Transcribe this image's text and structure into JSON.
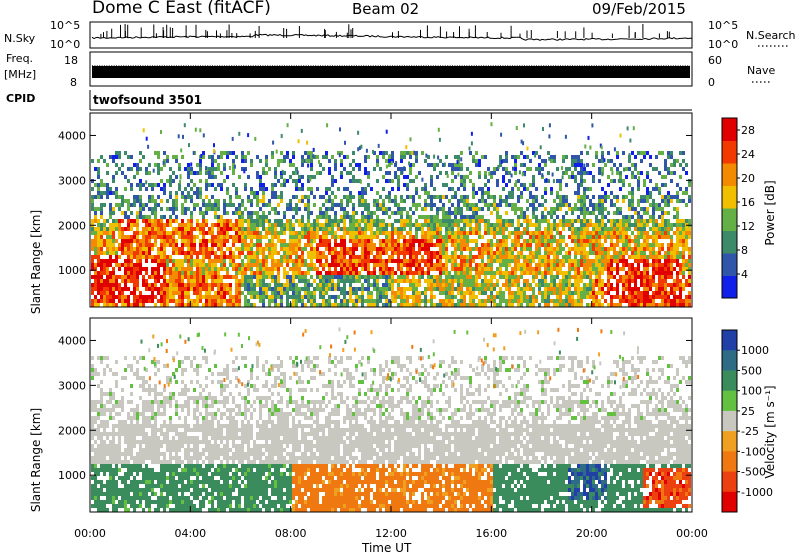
{
  "header": {
    "radar": "Dome C East (fitACF)",
    "beam": "Beam 02",
    "date": "09/Feb/2015"
  },
  "left_labels": {
    "nsky": "N.Sky",
    "freq": "Freq.",
    "freq_unit": "[MHz]",
    "cpid": "CPID"
  },
  "right_labels": {
    "nsearch": "N.Search",
    "nave": "Nave"
  },
  "cpid_value": "twofsound 3501",
  "strip_ticks": {
    "noise_left": [
      "10^5",
      "10^0"
    ],
    "noise_right": [
      "10^5",
      "10^0"
    ],
    "freq_left": [
      "18",
      "8"
    ],
    "nave_right": [
      "60",
      "0"
    ]
  },
  "colors": {
    "power_scale": [
      "#1020e8",
      "#2f56a8",
      "#3d8a6a",
      "#64b046",
      "#f0c000",
      "#f48a00",
      "#f23a00",
      "#e00000"
    ],
    "velocity_scale": [
      "#2040a8",
      "#2e6c86",
      "#3a8c5c",
      "#64c040",
      "#c8c8c0",
      "#f0a020",
      "#f07810",
      "#ec4010",
      "#e00000"
    ]
  },
  "chart_data": [
    {
      "type": "heatmap",
      "title": "Power",
      "xlabel": "",
      "ylabel": "Slant Range [km]",
      "x_ticks": [
        "00:00",
        "04:00",
        "08:00",
        "12:00",
        "16:00",
        "20:00",
        "00:00"
      ],
      "y_ticks": [
        1000,
        2000,
        3000,
        4000
      ],
      "ylim": [
        180,
        4500
      ],
      "colorbar": {
        "label": "Power [dB]",
        "ticks": [
          4,
          8,
          12,
          16,
          20,
          24,
          28
        ],
        "range": [
          0,
          30
        ]
      },
      "bands": [
        {
          "h0": 0,
          "h1": 24,
          "r0": 900,
          "r1": 1900,
          "v": 18
        },
        {
          "h0": 0,
          "h1": 24,
          "r0": 1900,
          "r1": 2200,
          "v": 14
        },
        {
          "h0": 0,
          "h1": 24,
          "r0": 2200,
          "r1": 2700,
          "v": 10
        },
        {
          "h0": 0,
          "h1": 24,
          "r0": 2700,
          "r1": 3700,
          "v": 8
        },
        {
          "h0": 0,
          "h1": 6,
          "r0": 200,
          "r1": 900,
          "v": 22
        },
        {
          "h0": 6,
          "h1": 12,
          "r0": 200,
          "r1": 900,
          "v": 12
        },
        {
          "h0": 12,
          "h1": 20,
          "r0": 200,
          "r1": 900,
          "v": 16
        },
        {
          "h0": 20,
          "h1": 24,
          "r0": 200,
          "r1": 900,
          "v": 22
        },
        {
          "h0": 0,
          "h1": 3,
          "r0": 300,
          "r1": 1400,
          "v": 27
        },
        {
          "h0": 20.5,
          "h1": 23.5,
          "r0": 300,
          "r1": 1300,
          "v": 26
        },
        {
          "h0": 9,
          "h1": 14,
          "r0": 900,
          "r1": 1700,
          "v": 24
        },
        {
          "h0": 1,
          "h1": 6,
          "r0": 1300,
          "r1": 2200,
          "v": 22
        }
      ]
    },
    {
      "type": "heatmap",
      "title": "Velocity",
      "xlabel": "Time UT",
      "ylabel": "Slant Range [km]",
      "x_ticks": [
        "00:00",
        "04:00",
        "08:00",
        "12:00",
        "16:00",
        "20:00",
        "00:00"
      ],
      "y_ticks": [
        1000,
        2000,
        3000,
        4000
      ],
      "ylim": [
        180,
        4500
      ],
      "colorbar": {
        "label": "Velocity [m s^-1]",
        "ticks": [
          "1000",
          "500",
          "100",
          "25",
          "-25",
          "-100",
          "-500",
          "-1000"
        ]
      },
      "bands": [
        {
          "h0": 0,
          "h1": 24,
          "r0": 1300,
          "r1": 2300,
          "v": 0
        },
        {
          "h0": 0,
          "h1": 24,
          "r0": 2300,
          "r1": 3700,
          "v": 10
        },
        {
          "h0": 0,
          "h1": 8,
          "r0": 200,
          "r1": 1300,
          "v": 200
        },
        {
          "h0": 8,
          "h1": 12,
          "r0": 200,
          "r1": 1300,
          "v": -200
        },
        {
          "h0": 12,
          "h1": 16,
          "r0": 200,
          "r1": 1300,
          "v": -150
        },
        {
          "h0": 16,
          "h1": 24,
          "r0": 200,
          "r1": 1300,
          "v": 250
        },
        {
          "h0": 19,
          "h1": 20.5,
          "r0": 500,
          "r1": 1300,
          "v": 900
        },
        {
          "h0": 22,
          "h1": 24,
          "r0": 300,
          "r1": 1200,
          "v": -700
        }
      ]
    }
  ]
}
